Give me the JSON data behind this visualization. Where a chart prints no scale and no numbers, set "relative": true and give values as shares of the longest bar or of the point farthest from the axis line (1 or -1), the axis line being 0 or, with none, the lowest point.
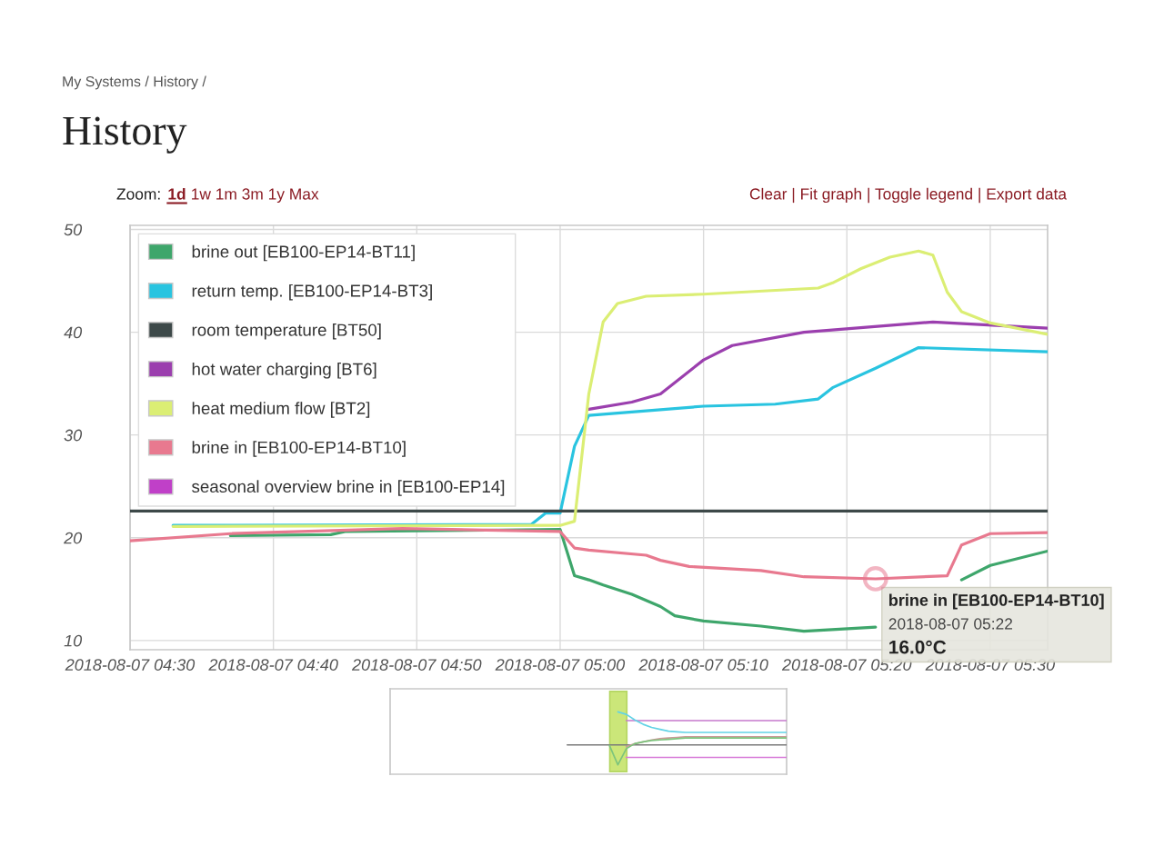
{
  "chart_data": [
    {
      "type": "line",
      "title": "History",
      "annotations": [
        "My Systems / History /",
        "Zoom:",
        "1d",
        "1w 1m 3m 1y Max",
        "Clear | Fit graph | Toggle legend | Export data",
        {
          "text": "brine in [EB100-EP14-BT10]\n2018-08-07 05:22\n16.0°C",
          "x": "2018-08-07T05:22",
          "y": 16.0
        }
      ],
      "series": [
        {
          "name": "brine out [EB100-EP14-BT11]",
          "color": "#3ea66b",
          "x": [
            "2018-08-07T04:37",
            "2018-08-07T04:44",
            "2018-08-07T04:45",
            "2018-08-07T05:00",
            "2018-08-07T05:01",
            "2018-08-07T05:02",
            "2018-08-07T05:03",
            "2018-08-07T05:05",
            "2018-08-07T05:07",
            "2018-08-07T05:08",
            "2018-08-07T05:10",
            "2018-08-07T05:14",
            "2018-08-07T05:17",
            "2018-08-07T05:22",
            "2018-08-07T05:25",
            "2018-08-07T05:28",
            "2018-08-07T05:30",
            "2018-08-07T05:34"
          ],
          "values": [
            20.2,
            20.3,
            20.6,
            20.8,
            16.3,
            15.9,
            15.4,
            14.5,
            13.3,
            12.4,
            11.9,
            11.4,
            10.9,
            11.3,
            null,
            15.9,
            17.3,
            18.7
          ]
        },
        {
          "name": "return temp. [EB100-EP14-BT3]",
          "color": "#29c4e0",
          "x": [
            "2018-08-07T04:33",
            "2018-08-07T04:58",
            "2018-08-07T04:59",
            "2018-08-07T05:00",
            "2018-08-07T05:01",
            "2018-08-07T05:02",
            "2018-08-07T05:10",
            "2018-08-07T05:15",
            "2018-08-07T05:18",
            "2018-08-07T05:19",
            "2018-08-07T05:22",
            "2018-08-07T05:25",
            "2018-08-07T05:34"
          ],
          "values": [
            21.2,
            21.3,
            22.4,
            22.4,
            28.9,
            31.9,
            32.8,
            33.0,
            33.5,
            34.6,
            36.5,
            38.5,
            38.1
          ]
        },
        {
          "name": "room temperature [BT50]",
          "color": "#3d4949",
          "x": [
            "2018-08-07T04:30",
            "2018-08-07T05:34"
          ],
          "values": [
            22.6,
            22.6
          ]
        },
        {
          "name": "hot water charging [BT6]",
          "color": "#9b3fae",
          "x": [
            "2018-08-07T05:02",
            "2018-08-07T05:05",
            "2018-08-07T05:07",
            "2018-08-07T05:10",
            "2018-08-07T05:12",
            "2018-08-07T05:17",
            "2018-08-07T05:26",
            "2018-08-07T05:34"
          ],
          "values": [
            32.5,
            33.2,
            34.0,
            37.3,
            38.7,
            40.0,
            41.0,
            40.4
          ]
        },
        {
          "name": "heat medium flow [BT2]",
          "color": "#dbee74",
          "x": [
            "2018-08-07T04:33",
            "2018-08-07T05:00",
            "2018-08-07T05:01",
            "2018-08-07T05:02",
            "2018-08-07T05:03",
            "2018-08-07T05:04",
            "2018-08-07T05:06",
            "2018-08-07T05:10",
            "2018-08-07T05:18",
            "2018-08-07T05:19",
            "2018-08-07T05:21",
            "2018-08-07T05:23",
            "2018-08-07T05:25",
            "2018-08-07T05:26",
            "2018-08-07T05:27",
            "2018-08-07T05:28",
            "2018-08-07T05:30",
            "2018-08-07T05:34"
          ],
          "values": [
            21.1,
            21.2,
            21.6,
            34.0,
            41.0,
            42.8,
            43.5,
            43.7,
            44.3,
            44.8,
            46.2,
            47.3,
            47.9,
            47.5,
            43.9,
            42.0,
            40.9,
            39.8
          ]
        },
        {
          "name": "brine in [EB100-EP14-BT10]",
          "color": "#e8798f",
          "x": [
            "2018-08-07T04:30",
            "2018-08-07T04:37",
            "2018-08-07T04:49",
            "2018-08-07T05:00",
            "2018-08-07T05:01",
            "2018-08-07T05:02",
            "2018-08-07T05:06",
            "2018-08-07T05:07",
            "2018-08-07T05:09",
            "2018-08-07T05:14",
            "2018-08-07T05:17",
            "2018-08-07T05:22",
            "2018-08-07T05:27",
            "2018-08-07T05:28",
            "2018-08-07T05:30",
            "2018-08-07T05:34"
          ],
          "values": [
            19.7,
            20.4,
            20.9,
            20.6,
            19.0,
            18.8,
            18.3,
            17.8,
            17.2,
            16.8,
            16.2,
            16.0,
            16.3,
            19.3,
            20.4,
            20.5
          ]
        },
        {
          "name": "seasonal overview brine in [EB100-EP14]",
          "color": "#c040c8"
        }
      ],
      "xlim": [
        "2018-08-07T04:30",
        "2018-08-07T05:34"
      ],
      "ylim": [
        9.1,
        50.4
      ],
      "xticks": [
        {
          "value": "2018-08-07T04:30",
          "label": "2018-08-07 04:30"
        },
        {
          "value": "2018-08-07T04:40",
          "label": "2018-08-07 04:40"
        },
        {
          "value": "2018-08-07T04:50",
          "label": "2018-08-07 04:50"
        },
        {
          "value": "2018-08-07T05:00",
          "label": "2018-08-07 05:00"
        },
        {
          "value": "2018-08-07T05:10",
          "label": "2018-08-07 05:10"
        },
        {
          "value": "2018-08-07T05:20",
          "label": "2018-08-07 05:20"
        },
        {
          "value": "2018-08-07T05:30",
          "label": "2018-08-07 05:30"
        }
      ],
      "yticks": [
        10,
        20,
        30,
        40,
        50
      ],
      "grid": true,
      "legend": "top left"
    },
    {
      "type": "line",
      "relative": true,
      "categories": [
        null,
        null,
        null,
        null,
        null,
        null,
        null,
        null,
        null,
        null,
        null,
        null,
        null,
        null,
        null,
        null,
        null,
        null,
        null,
        null,
        null,
        null,
        null,
        null,
        null,
        null,
        null,
        null,
        null,
        null,
        null,
        null,
        null,
        null,
        null,
        null,
        null,
        null,
        null,
        null,
        null,
        null,
        null,
        null,
        null,
        null,
        null,
        null
      ],
      "series": [
        {
          "color": "#7a7a7a",
          "values": [
            null,
            null,
            null,
            null,
            null,
            null,
            null,
            null,
            null,
            null,
            null,
            null,
            null,
            null,
            null,
            null,
            null,
            null,
            null,
            null,
            null,
            0.47,
            0.47,
            0.47,
            0.47,
            0.47,
            0.47,
            0.47,
            0.47,
            0.47,
            0.47,
            0.47,
            0.47,
            0.47,
            0.47,
            0.47,
            0.47,
            0.47,
            0.47,
            0.47,
            0.47,
            0.47,
            0.47,
            0.47,
            0.47,
            0.47,
            0.47,
            0.47
          ]
        },
        {
          "color": "#c678cc",
          "values": [
            null,
            null,
            null,
            null,
            null,
            null,
            null,
            null,
            null,
            null,
            null,
            null,
            null,
            null,
            null,
            null,
            null,
            null,
            null,
            null,
            null,
            null,
            null,
            null,
            null,
            null,
            null,
            null,
            0.86,
            0.86,
            0.86,
            0.86,
            0.86,
            0.86,
            0.86,
            0.86,
            0.86,
            0.86,
            0.86,
            0.86,
            0.86,
            0.86,
            0.86,
            0.86,
            0.86,
            0.86,
            0.86,
            0.86
          ]
        },
        {
          "color": "#d77ad8",
          "values": [
            null,
            null,
            null,
            null,
            null,
            null,
            null,
            null,
            null,
            null,
            null,
            null,
            null,
            null,
            null,
            null,
            null,
            null,
            null,
            null,
            null,
            null,
            null,
            null,
            null,
            null,
            null,
            null,
            0.27,
            0.27,
            0.27,
            0.27,
            0.27,
            0.27,
            0.27,
            0.27,
            0.27,
            0.27,
            0.27,
            0.27,
            0.27,
            0.27,
            0.27,
            0.27,
            0.27,
            0.27,
            0.27,
            0.27
          ]
        },
        {
          "color": "#63d3e6",
          "values": [
            null,
            null,
            null,
            null,
            null,
            null,
            null,
            null,
            null,
            null,
            null,
            null,
            null,
            null,
            null,
            null,
            null,
            null,
            null,
            null,
            null,
            null,
            null,
            null,
            null,
            null,
            null,
            1.0,
            0.96,
            0.87,
            0.8,
            0.75,
            0.72,
            0.69,
            0.68,
            0.67,
            0.67,
            0.67,
            0.67,
            0.67,
            0.67,
            0.67,
            0.67,
            0.67,
            0.67,
            0.67,
            0.67,
            0.67
          ]
        },
        {
          "color": "#c99a98",
          "values": [
            null,
            null,
            null,
            null,
            null,
            null,
            null,
            null,
            null,
            null,
            null,
            null,
            null,
            null,
            null,
            null,
            null,
            null,
            null,
            null,
            null,
            null,
            null,
            null,
            null,
            null,
            null,
            null,
            0.44,
            0.49,
            0.52,
            0.55,
            0.57,
            0.58,
            0.59,
            0.6,
            0.6,
            0.6,
            0.6,
            0.6,
            0.6,
            0.6,
            0.6,
            0.6,
            0.6,
            0.6,
            0.6,
            0.6
          ]
        },
        {
          "color": "#7cc47c",
          "values": [
            null,
            null,
            null,
            null,
            null,
            null,
            null,
            null,
            null,
            null,
            null,
            null,
            null,
            null,
            null,
            null,
            null,
            null,
            null,
            null,
            null,
            null,
            null,
            null,
            null,
            null,
            0.46,
            0.15,
            0.41,
            0.49,
            0.52,
            0.54,
            0.55,
            0.56,
            0.57,
            0.58,
            0.58,
            0.58,
            0.58,
            0.58,
            0.58,
            0.58,
            0.58,
            0.58,
            0.58,
            0.58,
            0.58,
            0.58
          ]
        }
      ]
    }
  ]
}
